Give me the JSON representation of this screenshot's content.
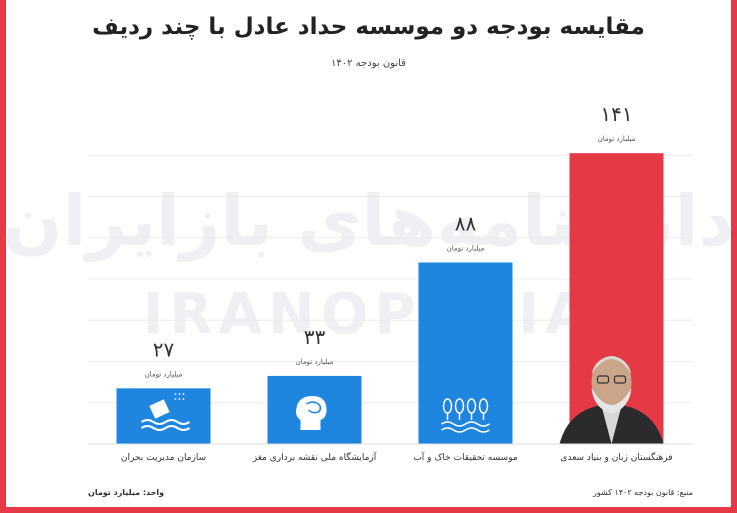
{
  "chart_data": {
    "type": "bar",
    "title": "مقایسه بودجه دو موسسه حداد عادل با چند ردیف",
    "subtitle": "قانون بودجه ۱۴۰۲",
    "categories": [
      "سازمان مدیریت بحران",
      "آزمایشگاه ملی نقشه برداری مغز",
      "موسسه تحقیقات خاک و آب",
      "فرهنگستان زبان و بنیاد سعدی"
    ],
    "values": [
      27,
      33,
      88,
      141
    ],
    "value_labels": [
      "۲۷",
      "۳۳",
      "۸۸",
      "۱۴۱"
    ],
    "unit_label": "میلیارد تومان",
    "bar_colors": [
      "#1f86e0",
      "#1f86e0",
      "#1f86e0",
      "#e53946"
    ],
    "icons": [
      "flood-house-icon",
      "brain-head-icon",
      "plants-water-icon",
      "portrait-photo"
    ],
    "ylim": [
      0,
      160
    ],
    "grid": true
  },
  "watermark": {
    "persian": "دانشنامه‌های بازایران",
    "english": "IRANOPEDIA"
  },
  "footer": {
    "unit_note": "واحد: میلیارد تومان",
    "source": "منبع: قانون بودجه ۱۴۰۲ کشور"
  },
  "colors": {
    "accent_red": "#e53946",
    "bar_blue": "#1f86e0"
  }
}
